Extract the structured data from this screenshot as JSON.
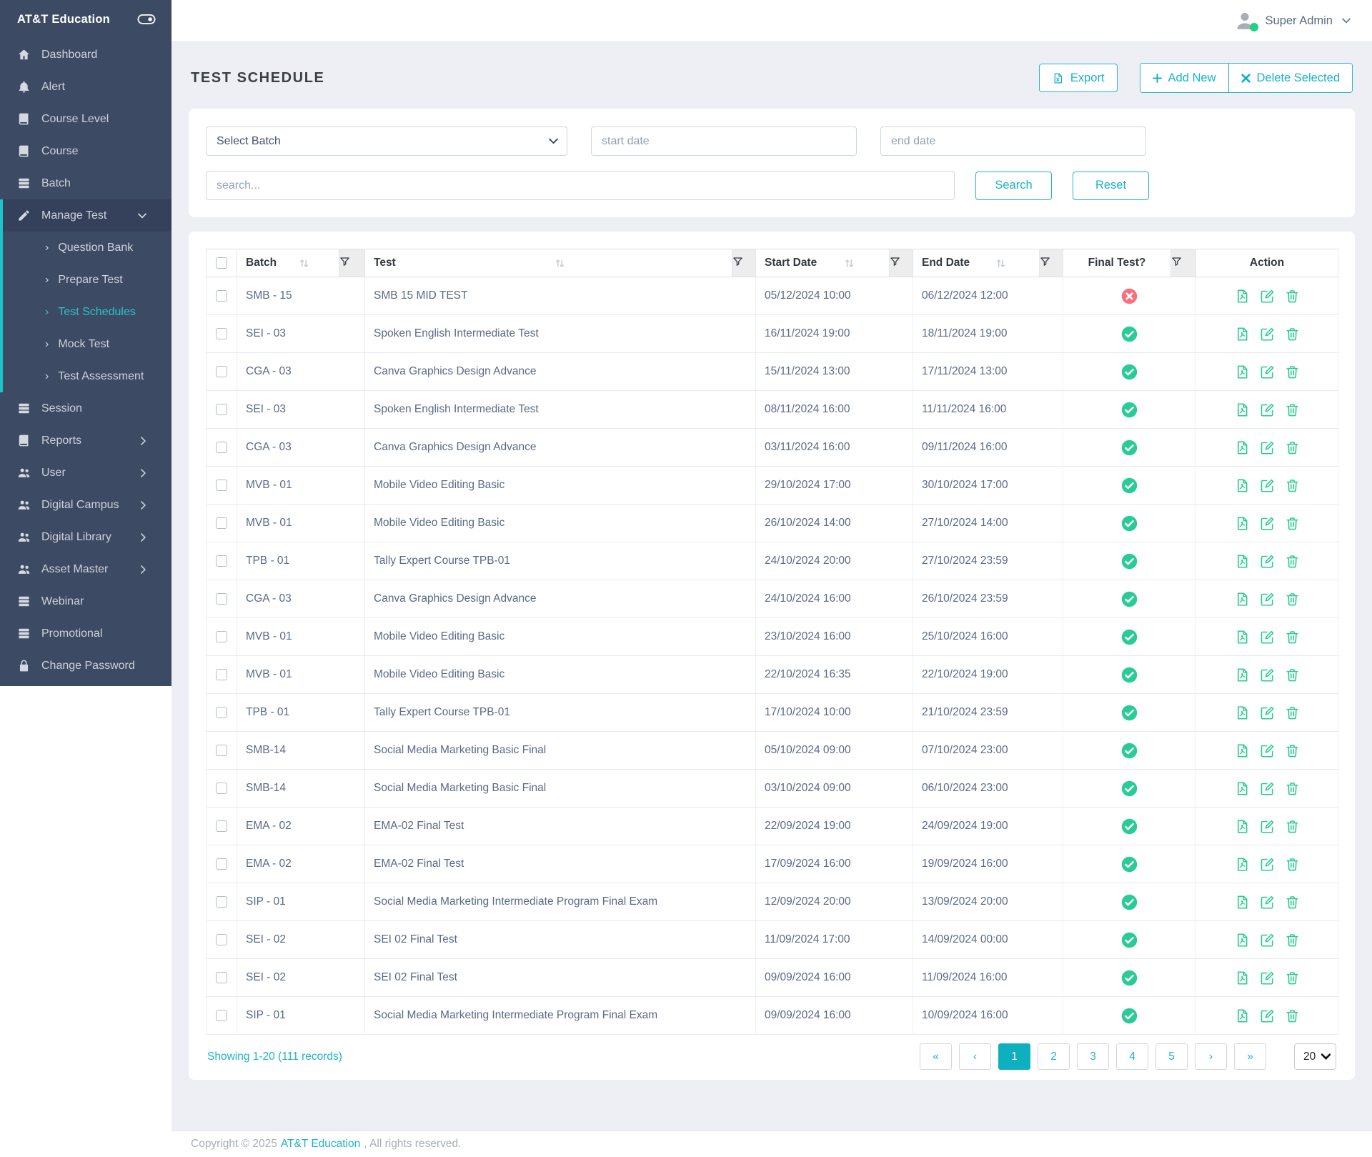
{
  "brand": {
    "name": "AT&T Education",
    "toggle_icon": "toggle-icon"
  },
  "topbar": {
    "user_name": "Super Admin",
    "avatar_icon": "avatar-icon",
    "online_dot_color": "#1fd286"
  },
  "sidebar": {
    "items": [
      {
        "label": "Dashboard",
        "icon": "home-icon"
      },
      {
        "label": "Alert",
        "icon": "bell-icon"
      },
      {
        "label": "Course Level",
        "icon": "book-icon"
      },
      {
        "label": "Course",
        "icon": "book-icon"
      },
      {
        "label": "Batch",
        "icon": "layers-icon"
      },
      {
        "label": "Manage Test",
        "icon": "pen-icon",
        "expanded": true,
        "active_section": true,
        "children": [
          {
            "label": "Question Bank"
          },
          {
            "label": "Prepare Test"
          },
          {
            "label": "Test Schedules",
            "active": true
          },
          {
            "label": "Mock Test"
          },
          {
            "label": "Test Assessment"
          }
        ]
      },
      {
        "label": "Session",
        "icon": "layers-icon"
      },
      {
        "label": "Reports",
        "icon": "book-icon",
        "has_arrow": true
      },
      {
        "label": "User",
        "icon": "users-icon",
        "has_arrow": true
      },
      {
        "label": "Digital Campus",
        "icon": "users-icon",
        "has_arrow": true
      },
      {
        "label": "Digital Library",
        "icon": "users-icon",
        "has_arrow": true
      },
      {
        "label": "Asset Master",
        "icon": "users-icon",
        "has_arrow": true
      },
      {
        "label": "Webinar",
        "icon": "layers-icon"
      },
      {
        "label": "Promotional",
        "icon": "layers-icon"
      },
      {
        "label": "Change Password",
        "icon": "lock-icon"
      }
    ]
  },
  "page": {
    "title": "TEST SCHEDULE"
  },
  "toolbar": {
    "export_label": "Export",
    "add_new_label": "Add New",
    "delete_selected_label": "Delete Selected"
  },
  "filters": {
    "batch_placeholder": "Select Batch",
    "start_date_placeholder": "start date",
    "end_date_placeholder": "end date",
    "search_placeholder": "search...",
    "search_label": "Search",
    "reset_label": "Reset"
  },
  "table": {
    "columns": [
      "Batch",
      "Test",
      "Start Date",
      "End Date",
      "Final Test?",
      "Action"
    ],
    "action_icons": [
      "pdf-icon",
      "edit-icon",
      "delete-icon"
    ],
    "rows": [
      {
        "batch": "SMB - 15",
        "test": "SMB 15 MID TEST",
        "start": "05/12/2024 10:00",
        "end": "06/12/2024 12:00",
        "final": false
      },
      {
        "batch": "SEI - 03",
        "test": "Spoken English Intermediate Test",
        "start": "16/11/2024 19:00",
        "end": "18/11/2024 19:00",
        "final": true
      },
      {
        "batch": "CGA - 03",
        "test": "Canva Graphics Design Advance",
        "start": "15/11/2024 13:00",
        "end": "17/11/2024 13:00",
        "final": true
      },
      {
        "batch": "SEI - 03",
        "test": "Spoken English Intermediate Test",
        "start": "08/11/2024 16:00",
        "end": "11/11/2024 16:00",
        "final": true
      },
      {
        "batch": "CGA - 03",
        "test": "Canva Graphics Design Advance",
        "start": "03/11/2024 16:00",
        "end": "09/11/2024 16:00",
        "final": true
      },
      {
        "batch": "MVB - 01",
        "test": "Mobile Video Editing Basic",
        "start": "29/10/2024 17:00",
        "end": "30/10/2024 17:00",
        "final": true
      },
      {
        "batch": "MVB - 01",
        "test": "Mobile Video Editing Basic",
        "start": "26/10/2024 14:00",
        "end": "27/10/2024 14:00",
        "final": true
      },
      {
        "batch": "TPB - 01",
        "test": "Tally Expert Course TPB-01",
        "start": "24/10/2024 20:00",
        "end": "27/10/2024 23:59",
        "final": true
      },
      {
        "batch": "CGA - 03",
        "test": "Canva Graphics Design Advance",
        "start": "24/10/2024 16:00",
        "end": "26/10/2024 23:59",
        "final": true
      },
      {
        "batch": "MVB - 01",
        "test": "Mobile Video Editing Basic",
        "start": "23/10/2024 16:00",
        "end": "25/10/2024 16:00",
        "final": true
      },
      {
        "batch": "MVB - 01",
        "test": "Mobile Video Editing Basic",
        "start": "22/10/2024 16:35",
        "end": "22/10/2024 19:00",
        "final": true
      },
      {
        "batch": "TPB - 01",
        "test": "Tally Expert Course TPB-01",
        "start": "17/10/2024 10:00",
        "end": "21/10/2024 23:59",
        "final": true
      },
      {
        "batch": "SMB-14",
        "test": "Social Media Marketing Basic Final",
        "start": "05/10/2024 09:00",
        "end": "07/10/2024 23:00",
        "final": true
      },
      {
        "batch": "SMB-14",
        "test": "Social Media Marketing Basic Final",
        "start": "03/10/2024 09:00",
        "end": "06/10/2024 23:00",
        "final": true
      },
      {
        "batch": "EMA - 02",
        "test": "EMA-02 Final Test",
        "start": "22/09/2024 19:00",
        "end": "24/09/2024 19:00",
        "final": true
      },
      {
        "batch": "EMA - 02",
        "test": "EMA-02 Final Test",
        "start": "17/09/2024 16:00",
        "end": "19/09/2024 16:00",
        "final": true
      },
      {
        "batch": "SIP - 01",
        "test": "Social Media Marketing Intermediate Program Final Exam",
        "start": "12/09/2024 20:00",
        "end": "13/09/2024 20:00",
        "final": true
      },
      {
        "batch": "SEI - 02",
        "test": "SEI 02 Final Test",
        "start": "11/09/2024 17:00",
        "end": "14/09/2024 00:00",
        "final": true
      },
      {
        "batch": "SEI - 02",
        "test": "SEI 02 Final Test",
        "start": "09/09/2024 16:00",
        "end": "11/09/2024 16:00",
        "final": true
      },
      {
        "batch": "SIP - 01",
        "test": "Social Media Marketing Intermediate Program Final Exam",
        "start": "09/09/2024 16:00",
        "end": "10/09/2024 16:00",
        "final": true
      }
    ]
  },
  "pagination": {
    "summary": "Showing 1-20 (111 records)",
    "buttons": [
      "«",
      "‹",
      "1",
      "2",
      "3",
      "4",
      "5",
      "›",
      "»"
    ],
    "active": "1",
    "page_size": "20"
  },
  "footer": {
    "copyright_prefix": "Copyright © 2025",
    "brand": "AT&T Education",
    "suffix": ", All rights reserved."
  },
  "colors": {
    "accent_teal": "#1fb5c4",
    "pagination_active": "#0eb0c0",
    "sidebar_bg": "#3d4a63",
    "sidebar_active_bg": "#35415b",
    "sidebar_active_border": "#1dc3c9",
    "success_green": "#2acc96",
    "action_green": "#29cc8f",
    "danger_red": "#f8707e",
    "page_bg": "#edeff5"
  }
}
